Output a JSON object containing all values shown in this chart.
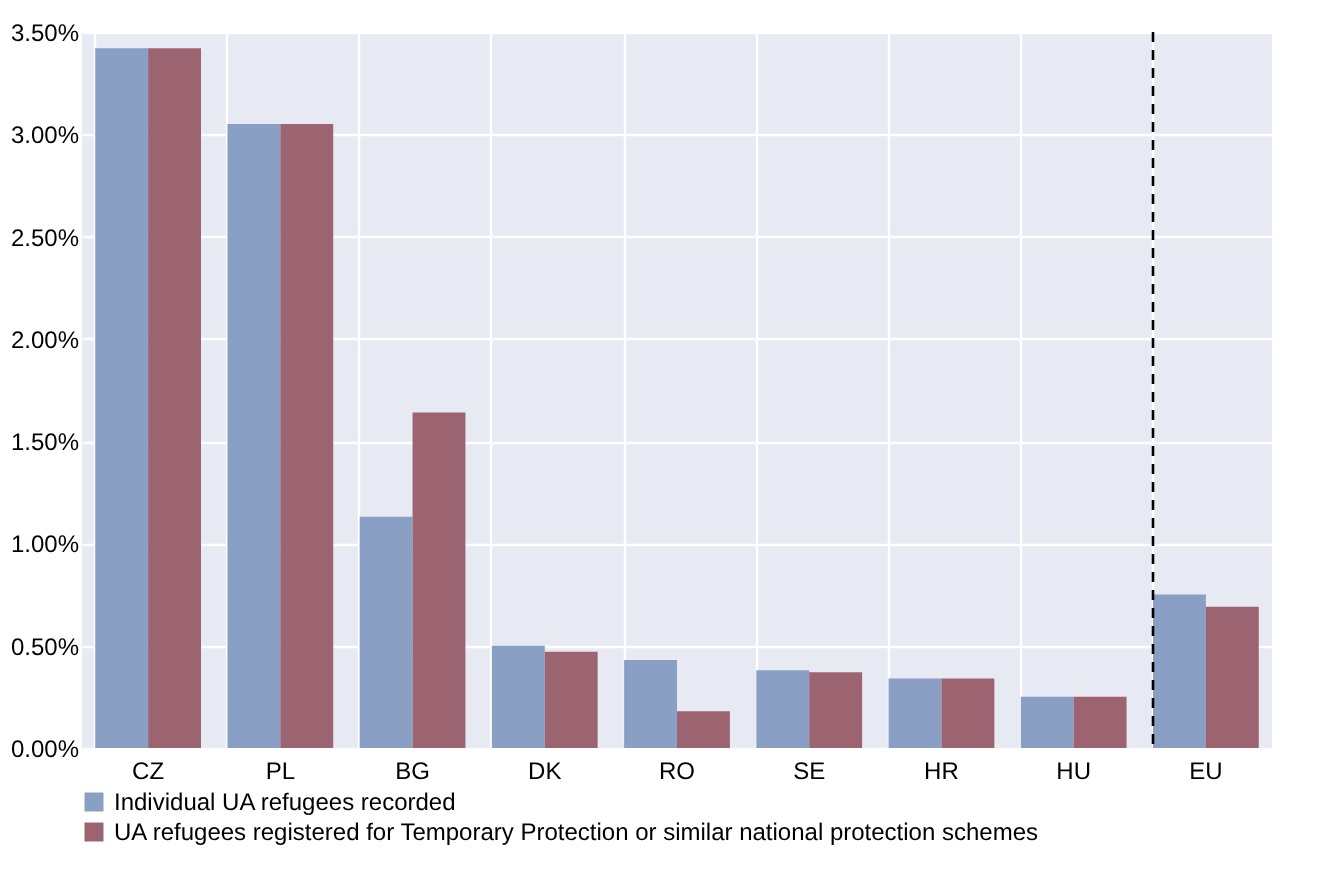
{
  "chart_data": {
    "type": "bar",
    "categories": [
      "CZ",
      "PL",
      "BG",
      "DK",
      "RO",
      "SE",
      "HR",
      "HU",
      "EU"
    ],
    "series": [
      {
        "name": "Individual UA refugees recorded",
        "color": "#8a9fc4",
        "values": [
          3.42,
          3.05,
          1.13,
          0.5,
          0.43,
          0.38,
          0.34,
          0.25,
          0.75
        ]
      },
      {
        "name": "UA refugees registered for Temporary Protection or similar national protection schemes",
        "color": "#9b6470",
        "values": [
          3.42,
          3.05,
          1.64,
          0.47,
          0.18,
          0.37,
          0.34,
          0.25,
          0.69
        ]
      }
    ],
    "ylim": [
      0,
      3.5
    ],
    "yticks": [
      {
        "value": 0,
        "label": "0.00%"
      },
      {
        "value": 0.5,
        "label": "0.50%"
      },
      {
        "value": 1,
        "label": "1.00%"
      },
      {
        "value": 1.5,
        "label": "1.50%"
      },
      {
        "value": 2,
        "label": "2.00%"
      },
      {
        "value": 2.5,
        "label": "2.50%"
      },
      {
        "value": 3,
        "label": "3.00%"
      },
      {
        "value": 3.5,
        "label": "3.50%"
      }
    ],
    "ref_lines": [
      {
        "axis": "x",
        "value": "EU",
        "color": "#000000",
        "line_style": "dashed"
      }
    ],
    "grid": true,
    "legend": "bottom left"
  }
}
